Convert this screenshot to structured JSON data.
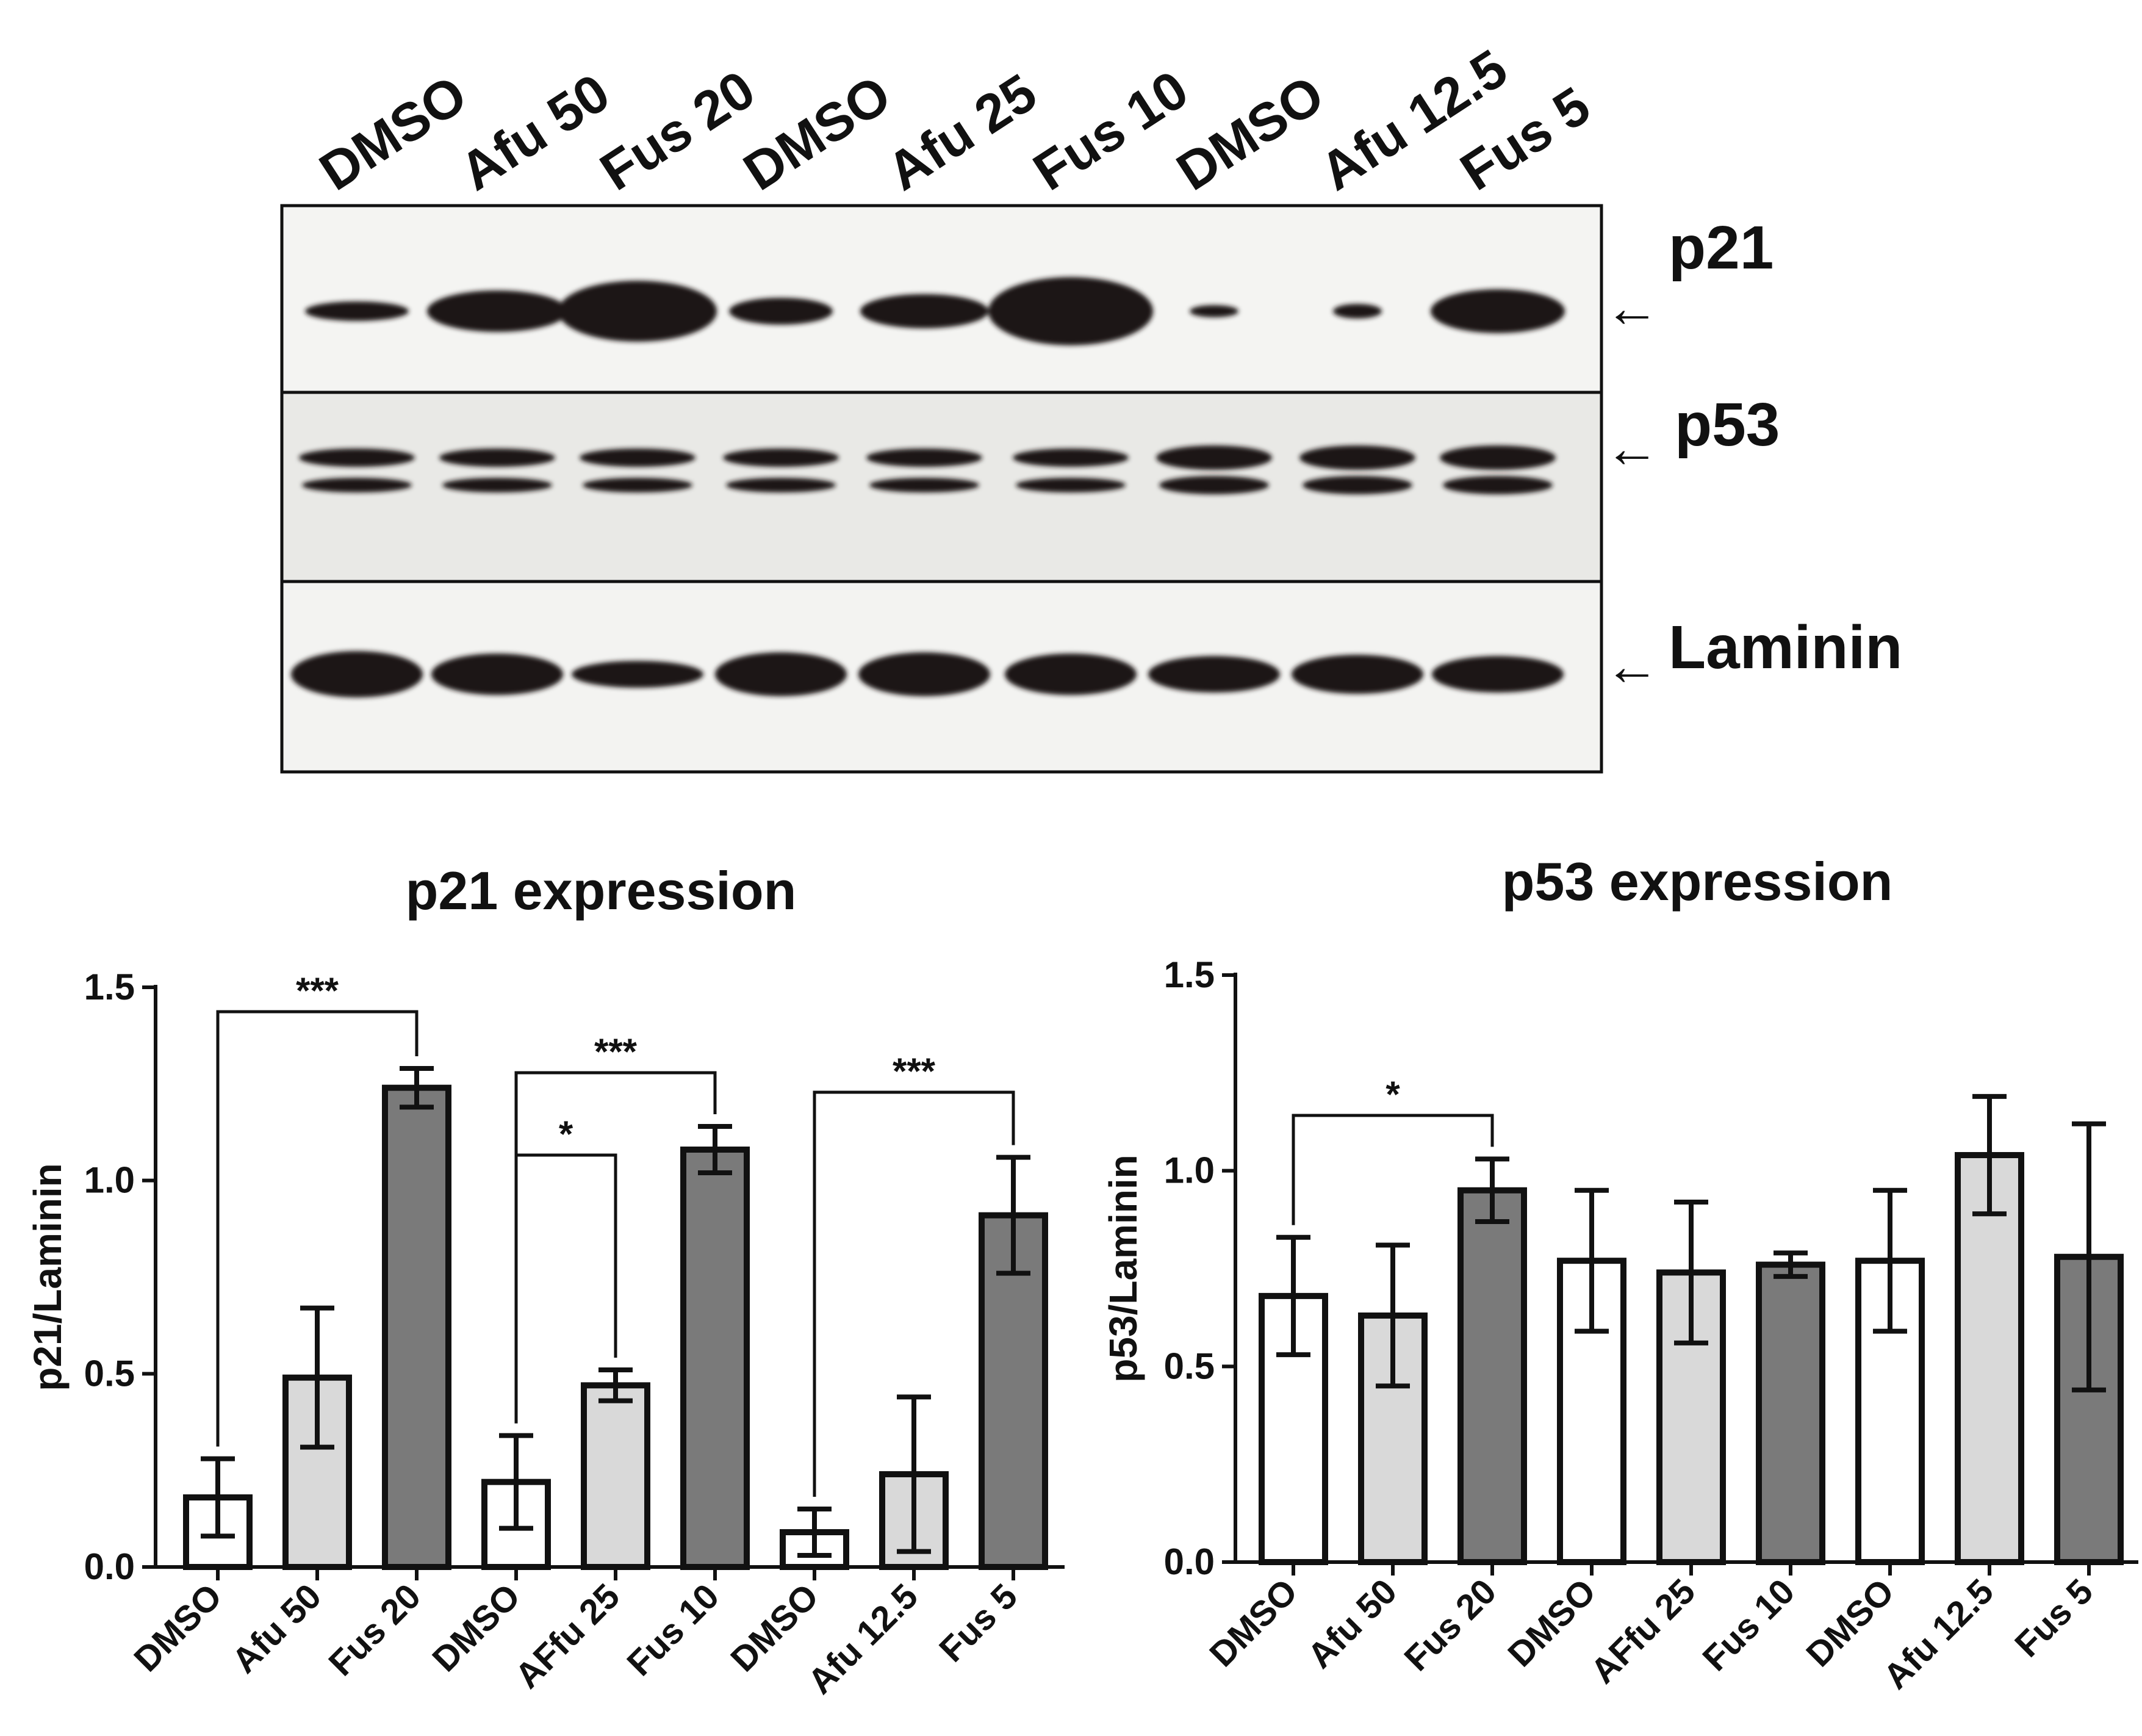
{
  "blot": {
    "lane_labels": [
      "DMSO",
      "Afu 50",
      "Fus 20",
      "DMSO",
      "Afu 25",
      "Fus 10",
      "DMSO",
      "Afu 12.5",
      "Fus 5"
    ],
    "row_labels": [
      "p21",
      "p53",
      "Laminin"
    ],
    "arrow": "←"
  },
  "colors": {
    "dmso": "#ffffff",
    "afu": "#d9d9d9",
    "fus": "#7a7a7a",
    "stroke": "#111111",
    "band": "#1a1714"
  },
  "chart_data": [
    {
      "type": "bar",
      "title": "p21 expression",
      "xlabel": "",
      "ylabel": "p21/Laminin",
      "ylim": [
        0,
        1.5
      ],
      "yticks": [
        "0.0",
        "0.5",
        "1.0",
        "1.5"
      ],
      "categories": [
        "DMSO",
        "Afu 50",
        "Fus 20",
        "DMSO",
        "AFfu 25",
        "Fus 10",
        "DMSO",
        "Afu 12.5",
        "Fus 5"
      ],
      "values": [
        0.18,
        0.49,
        1.24,
        0.22,
        0.47,
        1.08,
        0.09,
        0.24,
        0.91
      ],
      "errors": [
        0.1,
        0.18,
        0.05,
        0.12,
        0.04,
        0.06,
        0.06,
        0.2,
        0.15
      ],
      "groups": [
        "dmso",
        "afu",
        "fus",
        "dmso",
        "afu",
        "fus",
        "dmso",
        "afu",
        "fus"
      ],
      "significance": [
        {
          "from": 0,
          "to": 2,
          "label": "***"
        },
        {
          "from": 3,
          "to": 5,
          "label": "***"
        },
        {
          "from": 3,
          "to": 4,
          "label": "*"
        },
        {
          "from": 6,
          "to": 8,
          "label": "***"
        }
      ]
    },
    {
      "type": "bar",
      "title": "p53 expression",
      "xlabel": "",
      "ylabel": "p53/Laminin",
      "ylim": [
        0,
        1.5
      ],
      "yticks": [
        "0.0",
        "0.5",
        "1.0",
        "1.5"
      ],
      "categories": [
        "DMSO",
        "Afu 50",
        "Fus 20",
        "DMSO",
        "AFfu 25",
        "Fus 10",
        "DMSO",
        "Afu 12.5",
        "Fus 5"
      ],
      "values": [
        0.68,
        0.63,
        0.95,
        0.77,
        0.74,
        0.76,
        0.77,
        1.04,
        0.78
      ],
      "errors": [
        0.15,
        0.18,
        0.08,
        0.18,
        0.18,
        0.03,
        0.18,
        0.15,
        0.34
      ],
      "groups": [
        "dmso",
        "afu",
        "fus",
        "dmso",
        "afu",
        "fus",
        "dmso",
        "afu",
        "fus"
      ],
      "significance": [
        {
          "from": 0,
          "to": 2,
          "label": "*"
        }
      ]
    }
  ]
}
